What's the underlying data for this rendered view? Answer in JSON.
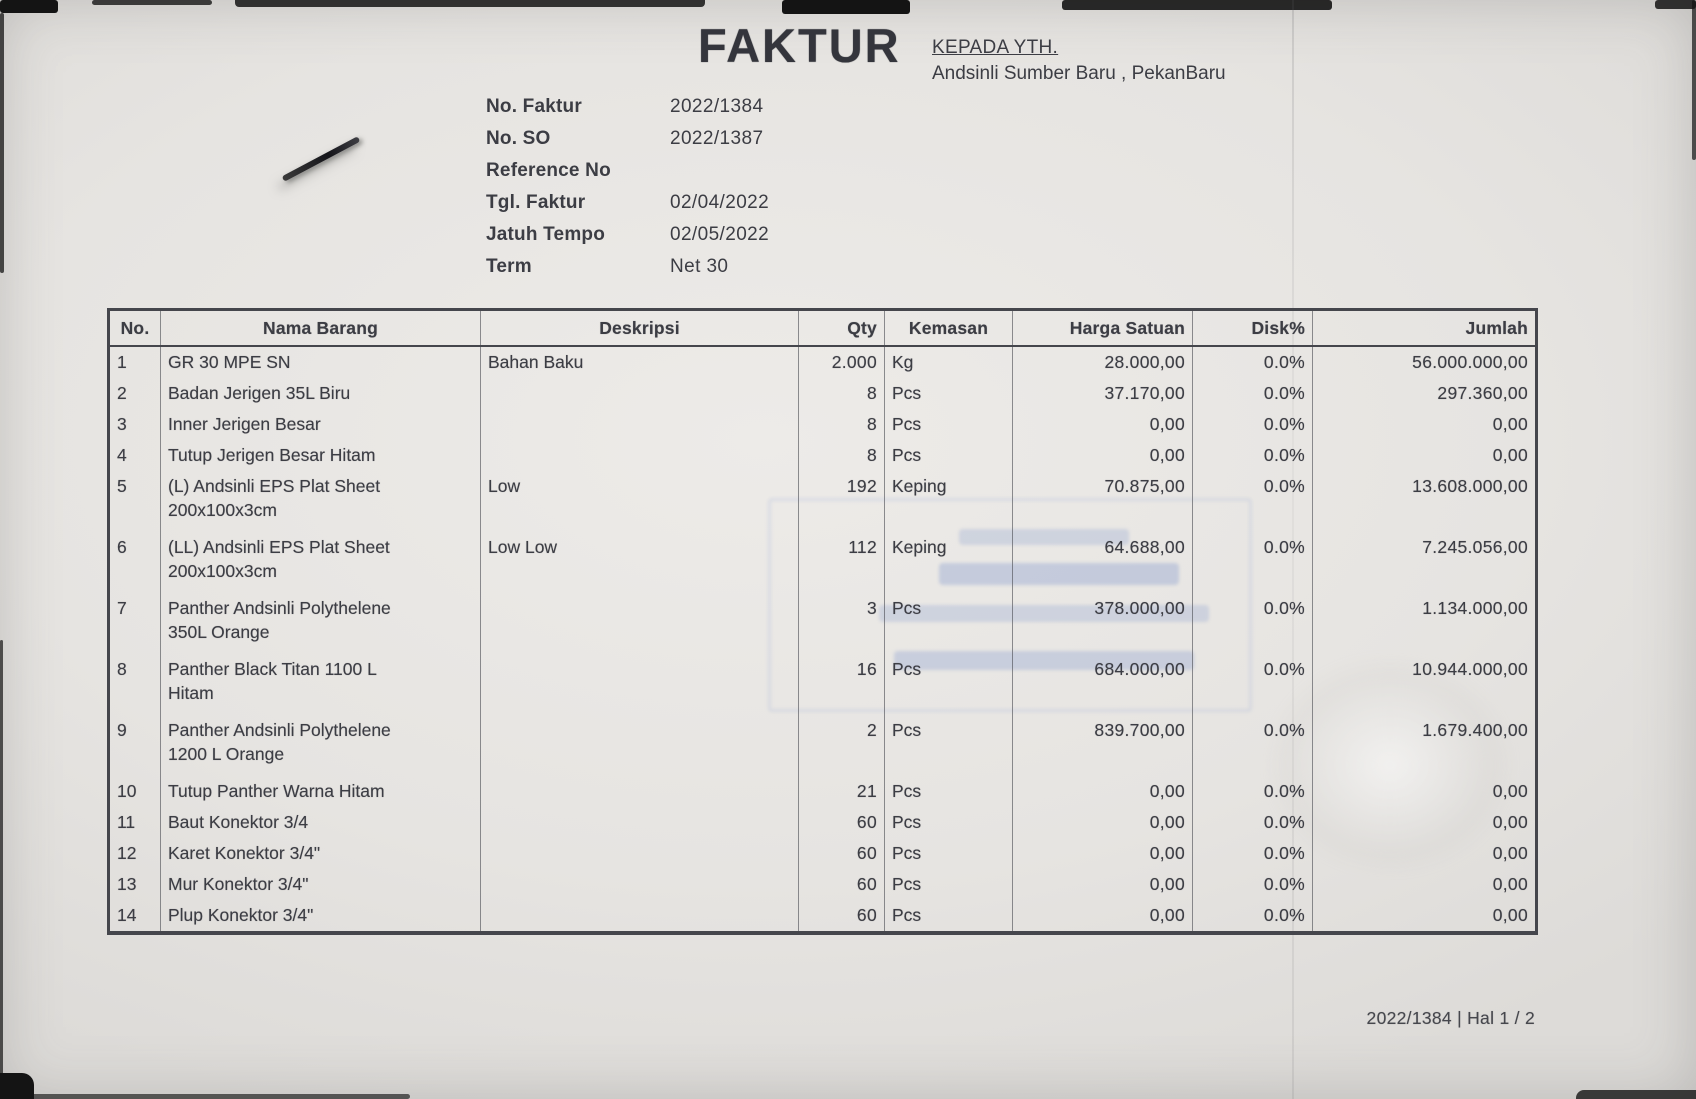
{
  "document": {
    "title": "FAKTUR",
    "recipient": {
      "label": "KEPADA YTH.",
      "name": "Andsinli Sumber Baru , PekanBaru"
    },
    "fields": [
      {
        "label": "No. Faktur",
        "value": "2022/1384"
      },
      {
        "label": "No. SO",
        "value": "2022/1387"
      },
      {
        "label": "Reference No",
        "value": ""
      },
      {
        "label": "Tgl. Faktur",
        "value": "02/04/2022"
      },
      {
        "label": "Jatuh Tempo",
        "value": "02/05/2022"
      },
      {
        "label": "Term",
        "value": "Net 30"
      }
    ],
    "footer": "2022/1384 | Hal 1 / 2"
  },
  "table": {
    "headers": {
      "no": "No.",
      "nama": "Nama Barang",
      "deskripsi": "Deskripsi",
      "qty": "Qty",
      "kemasan": "Kemasan",
      "harga": "Harga Satuan",
      "disk": "Disk%",
      "jumlah": "Jumlah"
    },
    "rows": [
      {
        "no": "1",
        "nama": [
          "GR 30 MPE SN"
        ],
        "deskripsi": "Bahan Baku",
        "qty": "2.000",
        "kemasan": "Kg",
        "harga": "28.000,00",
        "disk": "0.0%",
        "jumlah": "56.000.000,00"
      },
      {
        "no": "2",
        "nama": [
          "Badan Jerigen 35L Biru"
        ],
        "deskripsi": "",
        "qty": "8",
        "kemasan": "Pcs",
        "harga": "37.170,00",
        "disk": "0.0%",
        "jumlah": "297.360,00"
      },
      {
        "no": "3",
        "nama": [
          "Inner Jerigen Besar"
        ],
        "deskripsi": "",
        "qty": "8",
        "kemasan": "Pcs",
        "harga": "0,00",
        "disk": "0.0%",
        "jumlah": "0,00"
      },
      {
        "no": "4",
        "nama": [
          "Tutup Jerigen Besar Hitam"
        ],
        "deskripsi": "",
        "qty": "8",
        "kemasan": "Pcs",
        "harga": "0,00",
        "disk": "0.0%",
        "jumlah": "0,00"
      },
      {
        "no": "5",
        "nama": [
          "(L) Andsinli EPS Plat Sheet",
          "200x100x3cm"
        ],
        "deskripsi": "Low",
        "qty": "192",
        "kemasan": "Keping",
        "harga": "70.875,00",
        "disk": "0.0%",
        "jumlah": "13.608.000,00"
      },
      {
        "no": "6",
        "nama": [
          "(LL) Andsinli EPS Plat Sheet",
          "200x100x3cm"
        ],
        "deskripsi": "Low Low",
        "qty": "112",
        "kemasan": "Keping",
        "harga": "64.688,00",
        "disk": "0.0%",
        "jumlah": "7.245.056,00"
      },
      {
        "no": "7",
        "nama": [
          "Panther Andsinli Polythelene",
          "350L Orange"
        ],
        "deskripsi": "",
        "qty": "3",
        "kemasan": "Pcs",
        "harga": "378.000,00",
        "disk": "0.0%",
        "jumlah": "1.134.000,00"
      },
      {
        "no": "8",
        "nama": [
          "Panther Black Titan 1100 L",
          "Hitam"
        ],
        "deskripsi": "",
        "qty": "16",
        "kemasan": "Pcs",
        "harga": "684.000,00",
        "disk": "0.0%",
        "jumlah": "10.944.000,00"
      },
      {
        "no": "9",
        "nama": [
          "Panther Andsinli Polythelene",
          "1200 L Orange"
        ],
        "deskripsi": "",
        "qty": "2",
        "kemasan": "Pcs",
        "harga": "839.700,00",
        "disk": "0.0%",
        "jumlah": "1.679.400,00"
      },
      {
        "no": "10",
        "nama": [
          "Tutup Panther Warna Hitam"
        ],
        "deskripsi": "",
        "qty": "21",
        "kemasan": "Pcs",
        "harga": "0,00",
        "disk": "0.0%",
        "jumlah": "0,00"
      },
      {
        "no": "11",
        "nama": [
          "Baut Konektor 3/4"
        ],
        "deskripsi": "",
        "qty": "60",
        "kemasan": "Pcs",
        "harga": "0,00",
        "disk": "0.0%",
        "jumlah": "0,00"
      },
      {
        "no": "12",
        "nama": [
          "Karet Konektor 3/4\""
        ],
        "deskripsi": "",
        "qty": "60",
        "kemasan": "Pcs",
        "harga": "0,00",
        "disk": "0.0%",
        "jumlah": "0,00"
      },
      {
        "no": "13",
        "nama": [
          "Mur Konektor 3/4\""
        ],
        "deskripsi": "",
        "qty": "60",
        "kemasan": "Pcs",
        "harga": "0,00",
        "disk": "0.0%",
        "jumlah": "0,00"
      },
      {
        "no": "14",
        "nama": [
          "Plup Konektor 3/4\""
        ],
        "deskripsi": "",
        "qty": "60",
        "kemasan": "Pcs",
        "harga": "0,00",
        "disk": "0.0%",
        "jumlah": "0,00"
      }
    ]
  }
}
